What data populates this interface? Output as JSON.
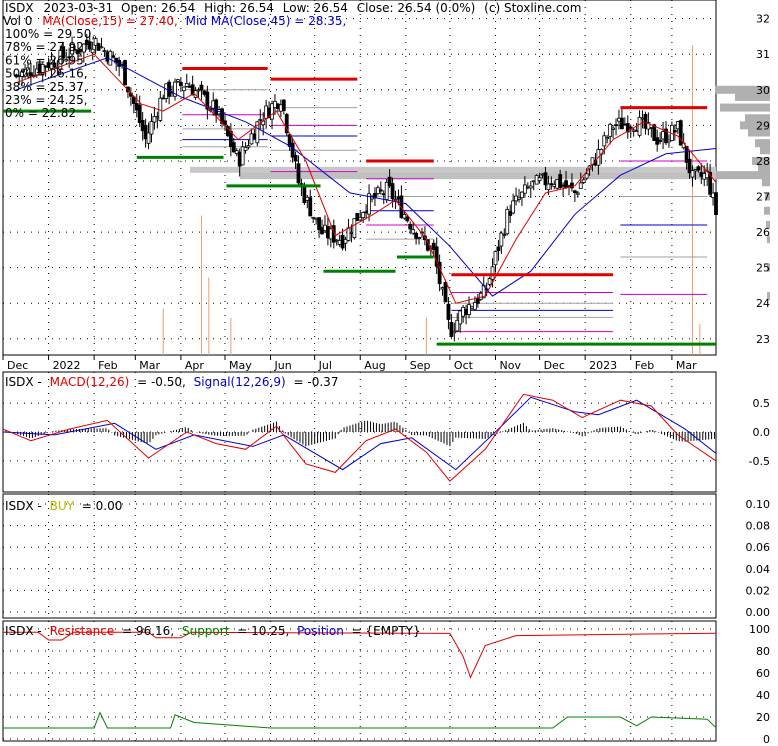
{
  "header": {
    "symbol": "ISDX",
    "date": "2023-03-31",
    "open": "Open: 26.54",
    "high": "High: 26.54",
    "low": "Low: 26.54",
    "close": "Close: 26.54 (0.0%)",
    "credit": "(c) Stoxline.com",
    "vol": "Vol 0",
    "ma15": "MA(Close,15) = 27.40,",
    "ma45": "Mid MA(Close,45) = 28.35,"
  },
  "fib_levels": [
    {
      "label": "100% = 29.50,",
      "color": "#e00000"
    },
    {
      "label": "78% = 27.92,",
      "color": "#cc00cc"
    },
    {
      "label": "61% = 26.95,",
      "color": "#a0a0a0"
    },
    {
      "label": "50% = 26.16,",
      "color": "#0000cc"
    },
    {
      "label": "38% = 25.37,",
      "color": "#a0a0a0"
    },
    {
      "label": "23% = 24.25,",
      "color": "#cc00cc"
    },
    {
      "label": "0% = 22.82",
      "color": "#00a000"
    }
  ],
  "months": [
    "Dec",
    "2022",
    "Feb",
    "Mar",
    "Apr",
    "May",
    "Jun",
    "Jul",
    "Aug",
    "Sep",
    "Oct",
    "Nov",
    "Dec",
    "2023",
    "Feb",
    "Mar"
  ],
  "macd": {
    "prefix": "ISDX -",
    "label": "MACD(12,26)",
    "value": "= -0.50,",
    "signal_label": "Signal(12,26,9)",
    "signal_value": "= -0.37",
    "ticks": [
      "0.5",
      "0.0",
      "-0.5"
    ]
  },
  "buy": {
    "prefix": "ISDX -",
    "label": "BUY",
    "value": "= 0.00",
    "ticks": [
      "0.10",
      "0.08",
      "0.06",
      "0.04",
      "0.02",
      "0.00"
    ]
  },
  "rs": {
    "prefix": "ISDX -",
    "res_label": "Resistance",
    "res_value": "= 96.16,",
    "sup_label": "Support",
    "sup_value": "= 10.25,",
    "pos_label": "Position",
    "pos_value": "= {EMPTY}",
    "ticks": [
      "100",
      "80",
      "60",
      "40",
      "20",
      "0"
    ]
  },
  "colors": {
    "up": "#000000",
    "ma15": "#e00000",
    "ma45": "#0000cc",
    "resistance": "#e00000",
    "support": "#008000",
    "signal": "#0000cc",
    "macd": "#e00000",
    "volume": "#e8a070",
    "grid": "#000000"
  },
  "chart_data": [
    {
      "type": "candlestick",
      "title": "ISDX 2023-03-31",
      "x_start": "2021-12-01",
      "x_end": "2023-03-31",
      "ylim": [
        22.6,
        32.3
      ],
      "y_ticks": [
        23,
        24,
        25,
        26,
        27,
        28,
        29,
        30,
        31,
        32
      ],
      "close_path": [
        {
          "x": "2021-12-10",
          "y": 30.4
        },
        {
          "x": "2022-01-10",
          "y": 30.9
        },
        {
          "x": "2022-02-01",
          "y": 31.4
        },
        {
          "x": "2022-02-20",
          "y": 30.6
        },
        {
          "x": "2022-03-08",
          "y": 28.6
        },
        {
          "x": "2022-03-20",
          "y": 29.9
        },
        {
          "x": "2022-04-05",
          "y": 30.2
        },
        {
          "x": "2022-04-25",
          "y": 29.4
        },
        {
          "x": "2022-05-10",
          "y": 28.0
        },
        {
          "x": "2022-05-25",
          "y": 29.2
        },
        {
          "x": "2022-06-08",
          "y": 29.8
        },
        {
          "x": "2022-06-20",
          "y": 27.4
        },
        {
          "x": "2022-07-05",
          "y": 26.0
        },
        {
          "x": "2022-07-20",
          "y": 25.8
        },
        {
          "x": "2022-08-05",
          "y": 26.8
        },
        {
          "x": "2022-08-20",
          "y": 27.2
        },
        {
          "x": "2022-09-05",
          "y": 26.2
        },
        {
          "x": "2022-09-20",
          "y": 25.4
        },
        {
          "x": "2022-10-01",
          "y": 23.2
        },
        {
          "x": "2022-10-10",
          "y": 23.8
        },
        {
          "x": "2022-10-25",
          "y": 24.3
        },
        {
          "x": "2022-11-10",
          "y": 26.6
        },
        {
          "x": "2022-11-25",
          "y": 27.3
        },
        {
          "x": "2022-12-10",
          "y": 27.5
        },
        {
          "x": "2022-12-25",
          "y": 27.1
        },
        {
          "x": "2023-01-10",
          "y": 28.2
        },
        {
          "x": "2023-01-20",
          "y": 29.0
        },
        {
          "x": "2023-02-05",
          "y": 29.1
        },
        {
          "x": "2023-02-20",
          "y": 28.6
        },
        {
          "x": "2023-03-05",
          "y": 28.9
        },
        {
          "x": "2023-03-15",
          "y": 27.5
        },
        {
          "x": "2023-03-25",
          "y": 27.6
        },
        {
          "x": "2023-03-31",
          "y": 26.54
        }
      ],
      "ma15_path": [
        {
          "x": "2021-12-10",
          "y": 30.2
        },
        {
          "x": "2022-02-01",
          "y": 31.0
        },
        {
          "x": "2022-03-05",
          "y": 29.6
        },
        {
          "x": "2022-03-20",
          "y": 29.4
        },
        {
          "x": "2022-04-10",
          "y": 29.9
        },
        {
          "x": "2022-05-10",
          "y": 28.6
        },
        {
          "x": "2022-06-05",
          "y": 29.4
        },
        {
          "x": "2022-06-25",
          "y": 28.0
        },
        {
          "x": "2022-07-15",
          "y": 25.9
        },
        {
          "x": "2022-08-10",
          "y": 26.5
        },
        {
          "x": "2022-08-25",
          "y": 26.9
        },
        {
          "x": "2022-09-15",
          "y": 25.8
        },
        {
          "x": "2022-10-05",
          "y": 24.0
        },
        {
          "x": "2022-10-25",
          "y": 24.2
        },
        {
          "x": "2022-11-15",
          "y": 25.8
        },
        {
          "x": "2022-12-05",
          "y": 27.1
        },
        {
          "x": "2022-12-25",
          "y": 27.3
        },
        {
          "x": "2023-01-20",
          "y": 28.6
        },
        {
          "x": "2023-02-10",
          "y": 29.1
        },
        {
          "x": "2023-03-05",
          "y": 28.7
        },
        {
          "x": "2023-03-31",
          "y": 27.4
        }
      ],
      "ma45_path": [
        {
          "x": "2021-12-10",
          "y": 30.0
        },
        {
          "x": "2022-02-10",
          "y": 30.9
        },
        {
          "x": "2022-04-01",
          "y": 29.8
        },
        {
          "x": "2022-05-15",
          "y": 29.1
        },
        {
          "x": "2022-06-15",
          "y": 28.4
        },
        {
          "x": "2022-07-25",
          "y": 27.1
        },
        {
          "x": "2022-09-01",
          "y": 26.8
        },
        {
          "x": "2022-10-01",
          "y": 25.6
        },
        {
          "x": "2022-10-30",
          "y": 24.2
        },
        {
          "x": "2022-11-25",
          "y": 24.9
        },
        {
          "x": "2022-12-25",
          "y": 26.5
        },
        {
          "x": "2023-01-25",
          "y": 27.6
        },
        {
          "x": "2023-02-25",
          "y": 28.2
        },
        {
          "x": "2023-03-31",
          "y": 28.35
        }
      ],
      "resistance_segments": [
        {
          "from": "2022-04-02",
          "to": "2022-05-30",
          "y": 30.6
        },
        {
          "from": "2022-06-01",
          "to": "2022-07-30",
          "y": 30.3
        },
        {
          "from": "2022-08-05",
          "to": "2022-09-20",
          "y": 28.0
        },
        {
          "from": "2022-10-02",
          "to": "2023-01-20",
          "y": 24.8
        },
        {
          "from": "2023-01-25",
          "to": "2023-03-25",
          "y": 29.5
        }
      ],
      "support_segments": [
        {
          "from": "2021-12-01",
          "to": "2022-01-30",
          "y": 29.4
        },
        {
          "from": "2022-03-02",
          "to": "2022-04-30",
          "y": 28.1
        },
        {
          "from": "2022-05-02",
          "to": "2022-07-05",
          "y": 27.3
        },
        {
          "from": "2022-07-07",
          "to": "2022-08-25",
          "y": 24.9
        },
        {
          "from": "2022-08-26",
          "to": "2022-09-20",
          "y": 25.3
        },
        {
          "from": "2022-09-22",
          "to": "2023-03-31",
          "y": 22.85
        }
      ],
      "volume_spikes": [
        {
          "x": "2022-04-15",
          "h": 0.45
        },
        {
          "x": "2022-04-20",
          "h": 0.25
        },
        {
          "x": "2022-05-05",
          "h": 0.12
        },
        {
          "x": "2022-03-20",
          "h": 0.15
        },
        {
          "x": "2022-09-15",
          "h": 0.12
        },
        {
          "x": "2023-03-15",
          "h": 1.0
        },
        {
          "x": "2023-03-20",
          "h": 0.1
        }
      ]
    },
    {
      "type": "line",
      "title": "MACD(12,26)",
      "ylim": [
        -0.9,
        0.9
      ],
      "y_ticks": [
        0.5,
        0.0,
        -0.5
      ],
      "series": [
        {
          "name": "MACD(12,26)",
          "values": [
            {
              "x": "2021-12-01",
              "y": 0.05
            },
            {
              "x": "2021-12-20",
              "y": -0.15
            },
            {
              "x": "2022-01-15",
              "y": 0.05
            },
            {
              "x": "2022-02-10",
              "y": 0.2
            },
            {
              "x": "2022-03-10",
              "y": -0.45
            },
            {
              "x": "2022-04-05",
              "y": 0.0
            },
            {
              "x": "2022-04-25",
              "y": -0.2
            },
            {
              "x": "2022-05-15",
              "y": -0.3
            },
            {
              "x": "2022-06-05",
              "y": 0.1
            },
            {
              "x": "2022-06-25",
              "y": -0.55
            },
            {
              "x": "2022-07-15",
              "y": -0.7
            },
            {
              "x": "2022-08-05",
              "y": -0.15
            },
            {
              "x": "2022-08-25",
              "y": 0.05
            },
            {
              "x": "2022-09-15",
              "y": -0.35
            },
            {
              "x": "2022-10-01",
              "y": -0.85
            },
            {
              "x": "2022-10-25",
              "y": -0.3
            },
            {
              "x": "2022-11-20",
              "y": 0.65
            },
            {
              "x": "2022-12-10",
              "y": 0.55
            },
            {
              "x": "2022-12-30",
              "y": 0.25
            },
            {
              "x": "2023-01-25",
              "y": 0.55
            },
            {
              "x": "2023-02-15",
              "y": 0.45
            },
            {
              "x": "2023-03-05",
              "y": -0.05
            },
            {
              "x": "2023-03-31",
              "y": -0.5
            }
          ]
        },
        {
          "name": "Signal(12,26,9)",
          "values": [
            {
              "x": "2021-12-01",
              "y": 0.0
            },
            {
              "x": "2022-01-05",
              "y": -0.05
            },
            {
              "x": "2022-02-15",
              "y": 0.15
            },
            {
              "x": "2022-03-15",
              "y": -0.3
            },
            {
              "x": "2022-04-10",
              "y": -0.05
            },
            {
              "x": "2022-05-20",
              "y": -0.25
            },
            {
              "x": "2022-06-10",
              "y": -0.05
            },
            {
              "x": "2022-07-20",
              "y": -0.65
            },
            {
              "x": "2022-08-15",
              "y": -0.2
            },
            {
              "x": "2022-09-05",
              "y": -0.1
            },
            {
              "x": "2022-10-05",
              "y": -0.65
            },
            {
              "x": "2022-11-05",
              "y": 0.1
            },
            {
              "x": "2022-11-25",
              "y": 0.6
            },
            {
              "x": "2022-12-25",
              "y": 0.35
            },
            {
              "x": "2023-01-10",
              "y": 0.3
            },
            {
              "x": "2023-02-05",
              "y": 0.55
            },
            {
              "x": "2023-03-10",
              "y": 0.05
            },
            {
              "x": "2023-03-31",
              "y": -0.37
            }
          ]
        }
      ]
    },
    {
      "type": "line",
      "title": "BUY",
      "ylim": [
        0,
        0.1
      ],
      "y_ticks": [
        0.1,
        0.08,
        0.06,
        0.04,
        0.02,
        0.0
      ],
      "series": [
        {
          "name": "BUY",
          "values": [
            {
              "x": "2021-12-01",
              "y": 0.0
            },
            {
              "x": "2023-03-31",
              "y": 0.0
            }
          ]
        }
      ]
    },
    {
      "type": "line",
      "title": "Resistance / Support",
      "ylim": [
        0,
        100
      ],
      "y_ticks": [
        100,
        80,
        60,
        40,
        20,
        0
      ],
      "series": [
        {
          "name": "Resistance",
          "values": [
            {
              "x": "2021-12-01",
              "y": 97
            },
            {
              "x": "2021-12-25",
              "y": 97
            },
            {
              "x": "2022-01-01",
              "y": 90
            },
            {
              "x": "2022-01-10",
              "y": 90
            },
            {
              "x": "2022-01-18",
              "y": 97
            },
            {
              "x": "2022-03-10",
              "y": 97
            },
            {
              "x": "2022-03-15",
              "y": 92
            },
            {
              "x": "2022-04-01",
              "y": 92
            },
            {
              "x": "2022-04-08",
              "y": 97
            },
            {
              "x": "2022-10-01",
              "y": 96
            },
            {
              "x": "2022-10-10",
              "y": 75
            },
            {
              "x": "2022-10-15",
              "y": 56
            },
            {
              "x": "2022-10-25",
              "y": 85
            },
            {
              "x": "2022-11-15",
              "y": 94
            },
            {
              "x": "2023-03-31",
              "y": 96.16
            }
          ]
        },
        {
          "name": "Support",
          "values": [
            {
              "x": "2021-12-01",
              "y": 10
            },
            {
              "x": "2022-02-01",
              "y": 10
            },
            {
              "x": "2022-02-05",
              "y": 24
            },
            {
              "x": "2022-02-10",
              "y": 10
            },
            {
              "x": "2022-03-25",
              "y": 10
            },
            {
              "x": "2022-03-28",
              "y": 22
            },
            {
              "x": "2022-04-10",
              "y": 15
            },
            {
              "x": "2022-06-01",
              "y": 10
            },
            {
              "x": "2022-12-10",
              "y": 10
            },
            {
              "x": "2022-12-20",
              "y": 20
            },
            {
              "x": "2023-01-25",
              "y": 20
            },
            {
              "x": "2023-02-05",
              "y": 12
            },
            {
              "x": "2023-02-15",
              "y": 20
            },
            {
              "x": "2023-03-25",
              "y": 18
            },
            {
              "x": "2023-03-31",
              "y": 10.25
            }
          ]
        }
      ]
    }
  ]
}
